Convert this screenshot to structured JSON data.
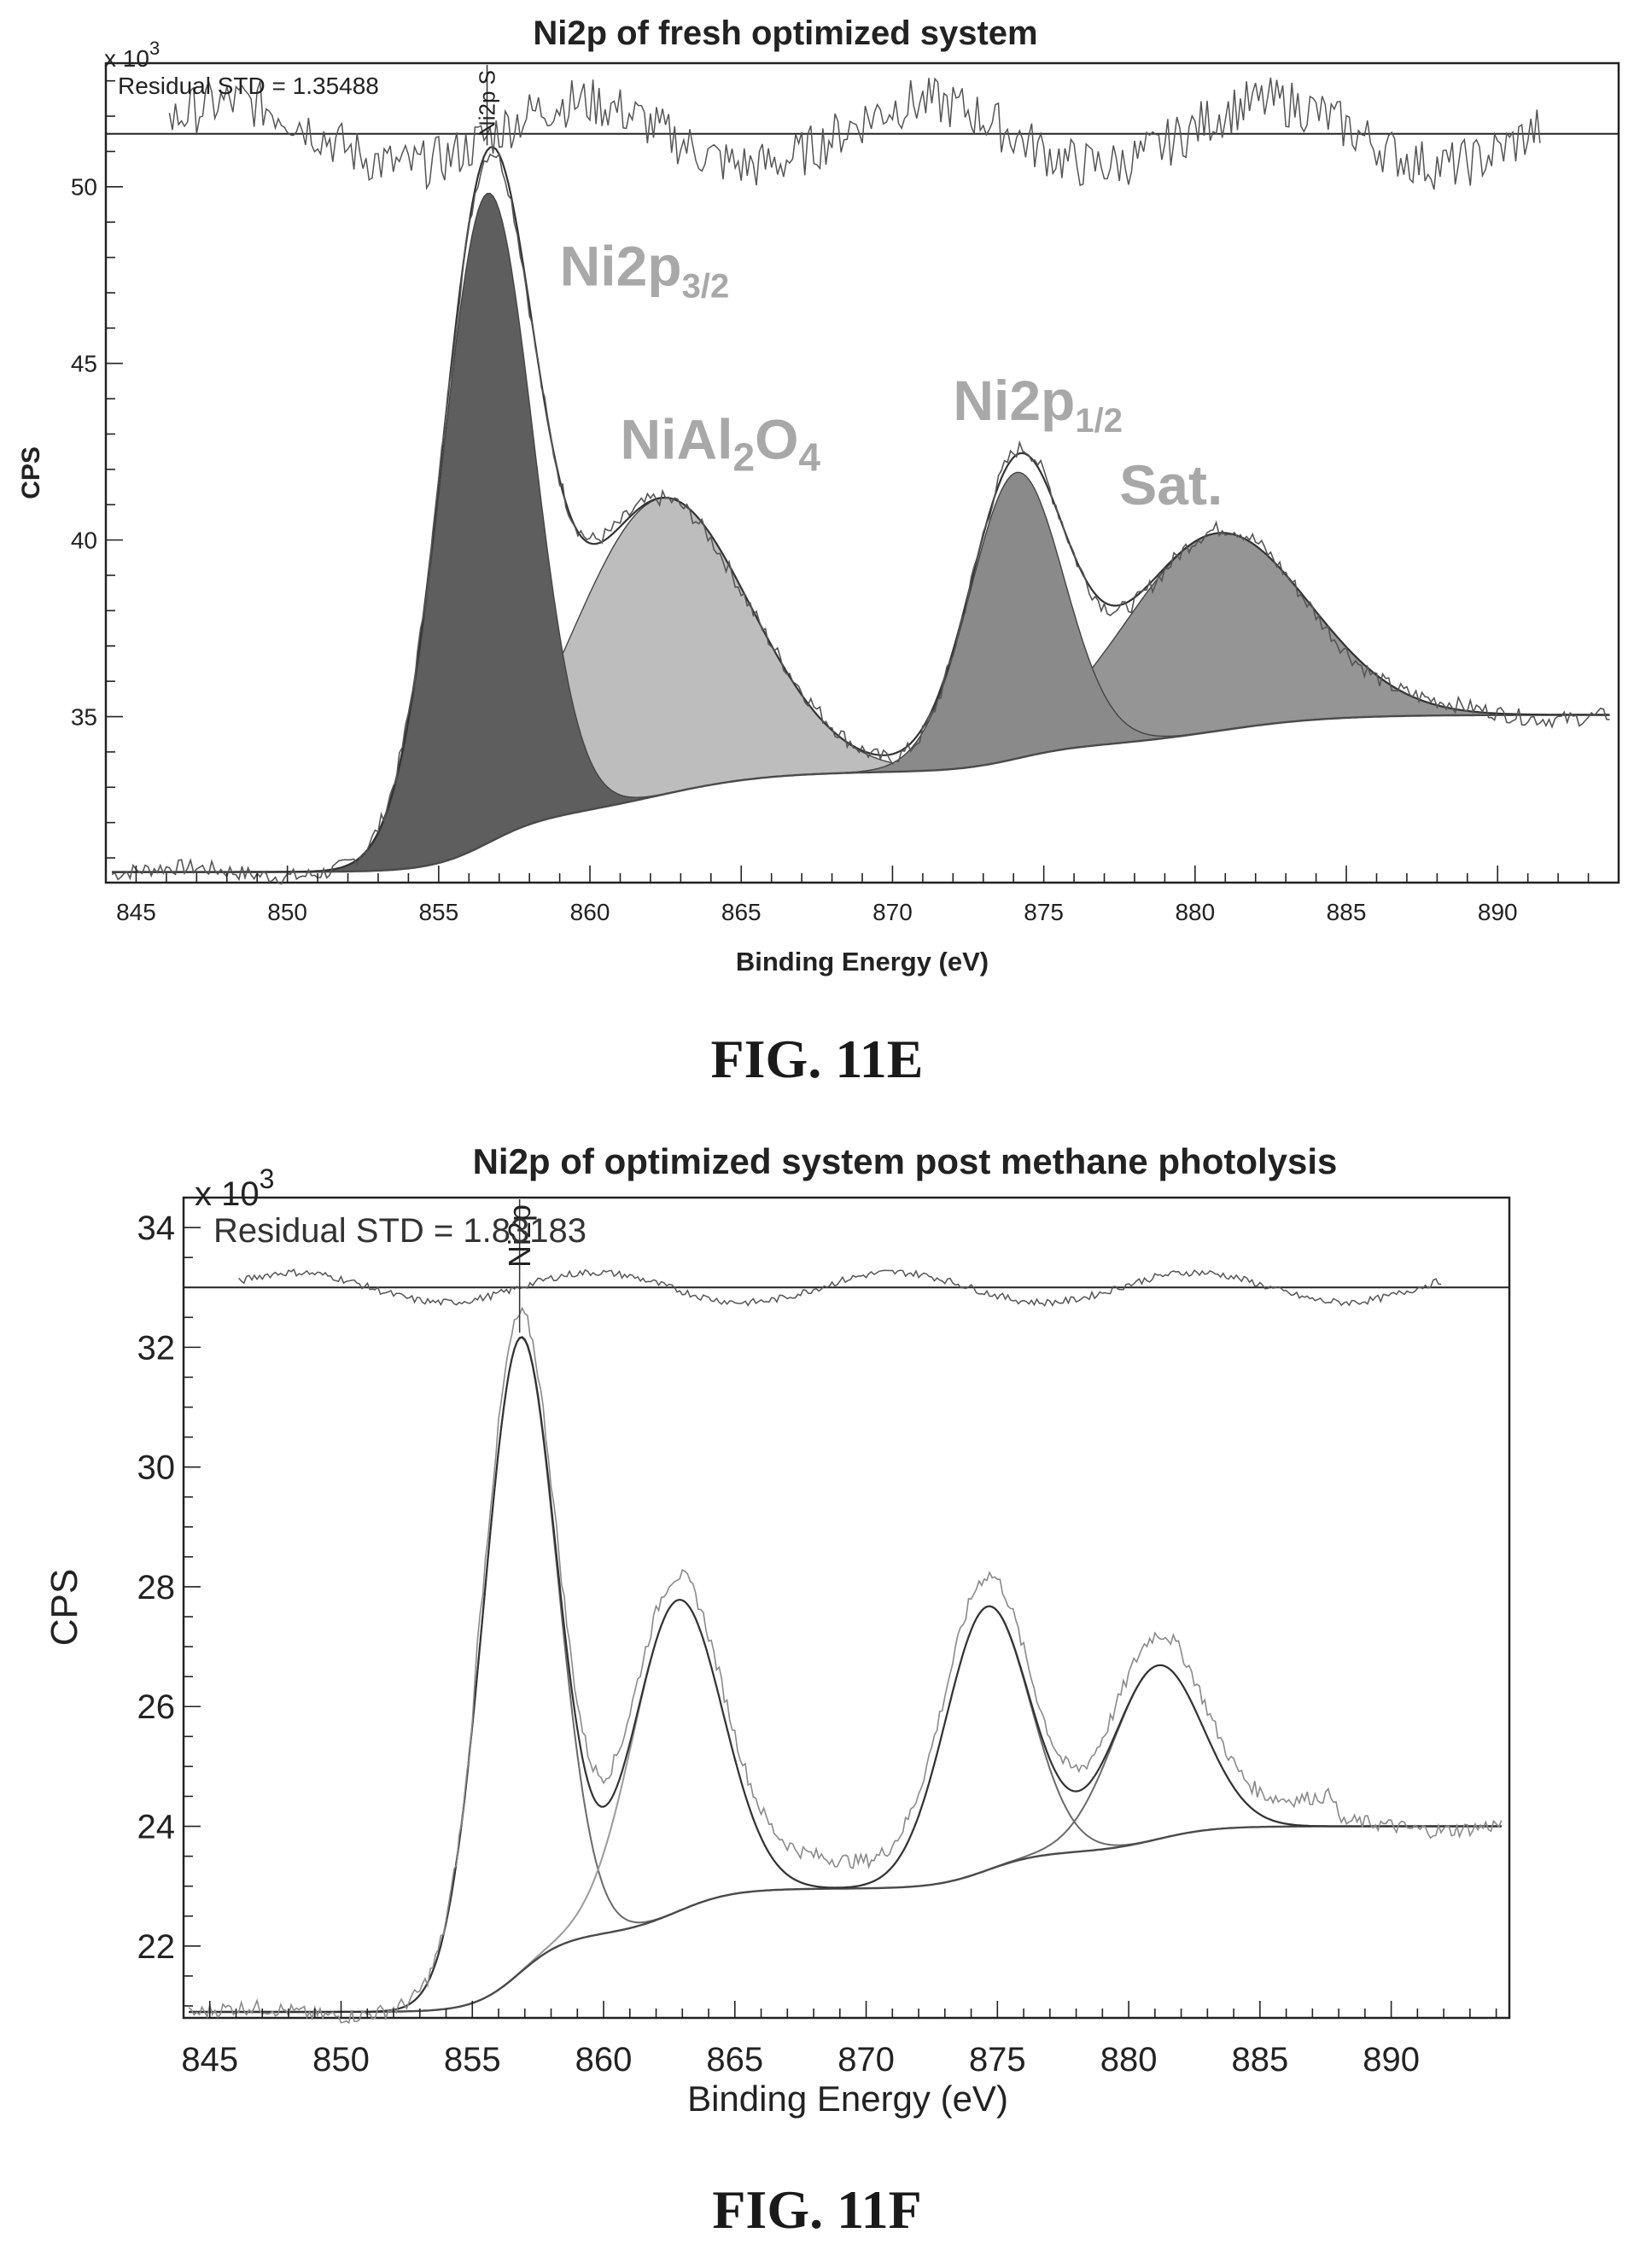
{
  "chart_data": [
    {
      "type": "line",
      "title": "Ni2p of fresh optimized system",
      "xlabel": "Binding Energy (eV)",
      "ylabel": "CPS",
      "y_multiplier": "x 10",
      "y_multiplier_exp": "3",
      "xlim": [
        844,
        894
      ],
      "ylim": [
        30.3,
        53.5
      ],
      "x_reversed": false,
      "xticks": [
        845,
        850,
        855,
        860,
        865,
        870,
        875,
        880,
        885,
        890
      ],
      "yticks": [
        35,
        40,
        45,
        50
      ],
      "residual_text": "Residual STD = 1.35488",
      "marker_label": "Ni2p S",
      "marker_x": 856.6,
      "residual_baseline": 51.5,
      "peaks": [
        {
          "x": 856.6,
          "height": 18.4,
          "sigma": 1.5
        },
        {
          "x": 862.3,
          "height": 8.4,
          "sigma": 2.9
        },
        {
          "x": 874.1,
          "height": 8.1,
          "sigma": 1.55
        },
        {
          "x": 880.7,
          "height": 5.6,
          "sigma": 3.0
        }
      ],
      "background": {
        "low": 30.6,
        "high": 35.05
      },
      "components": [
        {
          "name": "Ni2p3/2",
          "base": "Ni2p",
          "sub": "3/2",
          "label_x": 859,
          "label_y": 47.2
        },
        {
          "name": "NiAl2O4",
          "label_x": 861,
          "label_y": 42.3
        },
        {
          "name": "Ni2p1/2",
          "base": "Ni2p",
          "sub": "1/2",
          "label_x": 872,
          "label_y": 43.4
        },
        {
          "name": "Sat.",
          "label_x": 877.5,
          "label_y": 41.0
        }
      ],
      "colors": {
        "comp1": "#5e5e5e",
        "comp2": "#b9b9b9",
        "comp3": "#8a8a8a",
        "comp4": "#959595",
        "line": "#555555"
      }
    },
    {
      "type": "line",
      "title": "Ni2p of optimized system post methane photolysis",
      "xlabel": "Binding Energy (eV)",
      "ylabel": "CPS",
      "y_multiplier": "x 10",
      "y_multiplier_exp": "3",
      "xlim": [
        844,
        894.5
      ],
      "ylim": [
        20.8,
        34.5
      ],
      "x_reversed": false,
      "xticks": [
        845,
        850,
        855,
        860,
        865,
        870,
        875,
        880,
        885,
        890
      ],
      "yticks": [
        22,
        24,
        26,
        28,
        30,
        32,
        34
      ],
      "residual_text": "Residual STD = 1.83183",
      "marker_label": "Ni2p",
      "marker_x": 856.8,
      "residual_baseline": 33.0,
      "peaks": [
        {
          "x": 856.8,
          "height": 10.6,
          "sigma": 1.4
        },
        {
          "x": 862.8,
          "height": 5.2,
          "sigma": 1.7
        },
        {
          "x": 874.6,
          "height": 4.4,
          "sigma": 1.6
        },
        {
          "x": 881.1,
          "height": 2.9,
          "sigma": 1.7
        }
      ],
      "background": {
        "low": 20.9,
        "high": 24.0
      },
      "colors": {
        "line": "#666666",
        "raw": "#8a8a8a"
      }
    }
  ],
  "captions": {
    "fig_e": "FIG. 11E",
    "fig_f": "FIG. 11F"
  }
}
